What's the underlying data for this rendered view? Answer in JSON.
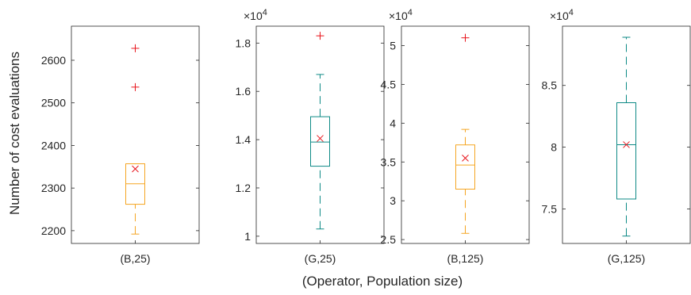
{
  "chart_data": {
    "type": "box",
    "ylabel": "Number of cost evaluations",
    "xlabel": "(Operator, Population size)",
    "colors": {
      "box_B": "#f5a623",
      "box_G": "#0e8a86",
      "outlier": "#e8141b",
      "mean": "#e8141b",
      "axis": "#262626"
    },
    "panels": [
      {
        "category": "(B,25)",
        "color_key": "box_B",
        "exponent_label": "",
        "ylim": [
          2170,
          2680
        ],
        "yticks": [
          2200,
          2300,
          2400,
          2500,
          2600
        ],
        "ytick_labels": [
          "2200",
          "2300",
          "2400",
          "2500",
          "2600"
        ],
        "whisker_low": 2192,
        "q1": 2262,
        "median": 2310,
        "q3": 2357,
        "whisker_high": 2357,
        "mean": 2345,
        "outliers": [
          2537,
          2628
        ]
      },
      {
        "category": "(G,25)",
        "color_key": "box_G",
        "exponent_label": "×10",
        "exponent_power": "4",
        "ylim": [
          0.97,
          1.87
        ],
        "yticks": [
          1.0,
          1.2,
          1.4,
          1.6,
          1.8
        ],
        "ytick_labels": [
          "1",
          "1.2",
          "1.4",
          "1.6",
          "1.8"
        ],
        "whisker_low": 1.03,
        "q1": 1.29,
        "median": 1.39,
        "q3": 1.495,
        "whisker_high": 1.67,
        "mean": 1.405,
        "outliers": [
          1.83
        ]
      },
      {
        "category": "(B,125)",
        "color_key": "box_B",
        "exponent_label": "×10",
        "exponent_power": "4",
        "ylim": [
          2.45,
          5.25
        ],
        "yticks": [
          2.5,
          3.0,
          3.5,
          4.0,
          4.5,
          5.0
        ],
        "ytick_labels": [
          "2.5",
          "3",
          "3.5",
          "4",
          "4.5",
          "5"
        ],
        "whisker_low": 2.58,
        "q1": 3.15,
        "median": 3.46,
        "q3": 3.72,
        "whisker_high": 3.92,
        "mean": 3.55,
        "outliers": [
          5.1
        ]
      },
      {
        "category": "(G,125)",
        "color_key": "box_G",
        "exponent_label": "×10",
        "exponent_power": "4",
        "ylim": [
          7.22,
          8.98
        ],
        "yticks": [
          7.5,
          8.0,
          8.5
        ],
        "ytick_labels": [
          "7.5",
          "8",
          "8.5"
        ],
        "whisker_low": 7.28,
        "q1": 7.58,
        "median": 8.02,
        "q3": 8.36,
        "whisker_high": 8.89,
        "mean": 8.02,
        "outliers": []
      }
    ]
  }
}
